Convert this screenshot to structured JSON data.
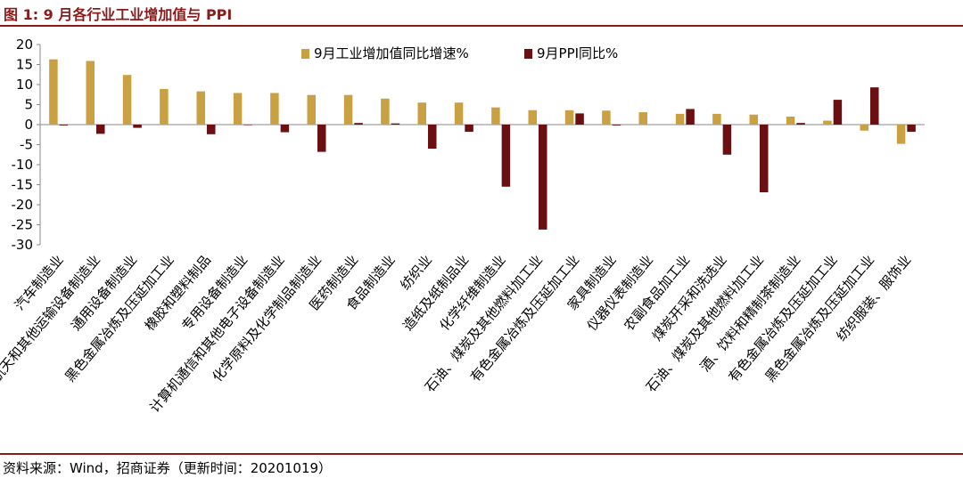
{
  "figure": {
    "title": "图 1:  9 月各行业工业增加值与 PPI",
    "source": "资料来源：Wind，招商证券（更新时间：20201019）"
  },
  "colors": {
    "accent": "#8b1a1a",
    "series_gold": "#c9a143",
    "series_red": "#6b0f12"
  },
  "chart_data": {
    "type": "bar",
    "title": "",
    "xlabel": "",
    "ylabel": "",
    "ylim": [
      -30,
      20
    ],
    "yticks": [
      20,
      15,
      10,
      5,
      0,
      -5,
      -10,
      -15,
      -20,
      -25,
      -30
    ],
    "grid": false,
    "legend": "top",
    "categories": [
      "汽车制造业",
      "铁路、船舶、航空航天和其他运输设备制造业",
      "通用设备制造业",
      "黑色金属冶炼及压延加工业",
      "橡胶和塑料制品",
      "专用设备制造业",
      "计算机通信和其他电子设备制造业",
      "化学原料及化学制品制造业",
      "医药制造业",
      "食品制造业",
      "纺织业",
      "造纸及纸制品业",
      "化学纤维制造业",
      "石油、煤炭及其他燃料加工业",
      "有色金属冶炼及压延加工业",
      "家具制造业",
      "仪器仪表制造业",
      "农副食品加工业",
      "煤炭开采和洗选业",
      "石油、煤炭及其他燃料加工业",
      "酒、饮料和精制茶制造业",
      "有色金属冶炼及压延加工业",
      "黑色金属冶炼及压延加工业",
      "纺织服装、服饰业"
    ],
    "series": [
      {
        "name": "9月工业增加值同比增速%",
        "color": "#c9a143",
        "values": [
          16.3,
          15.9,
          12.4,
          8.9,
          8.3,
          7.9,
          7.9,
          7.4,
          7.4,
          6.5,
          5.5,
          5.5,
          4.3,
          3.6,
          3.6,
          3.5,
          3.1,
          2.7,
          2.7,
          2.5,
          2.0,
          1.0,
          -1.5,
          -4.8
        ]
      },
      {
        "name": "9月PPI同比%",
        "color": "#6b0f12",
        "values": [
          -0.2,
          -2.3,
          -0.8,
          0.0,
          -2.4,
          -0.1,
          -1.9,
          -6.8,
          0.4,
          0.3,
          -6.0,
          -1.8,
          -15.5,
          -26.2,
          2.8,
          -0.2,
          0.0,
          3.9,
          -7.5,
          -16.9,
          0.4,
          6.2,
          9.3,
          -1.8
        ]
      }
    ]
  }
}
